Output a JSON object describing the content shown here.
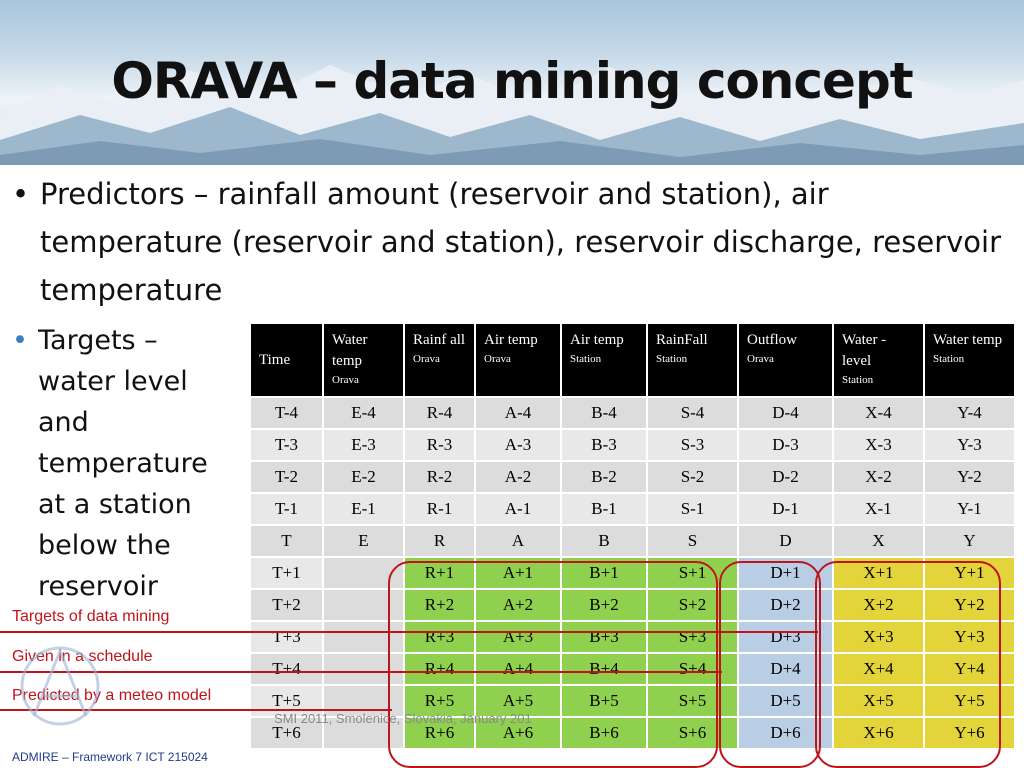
{
  "slide": {
    "title": "ORAVA – data mining concept",
    "bullet1": "Predictors – rainfall amount (reservoir and station), air temperature (reservoir and station), reservoir discharge, reservoir temperature",
    "bullet2": "Targets – water level and temperature at a station below the reservoir",
    "label_targets": "Targets of data mining",
    "label_schedule": "Given in a schedule",
    "label_meteo": "Predicted by a meteo model",
    "footer_left": "ADMIRE – Framework 7 ICT 215024",
    "footer_mid": "SMI 2011, Smolenice, Slovakia, January 201",
    "accent_red": "#c0141b",
    "green": "#8fd14f",
    "blue": "#b9cde4",
    "yellow": "#e2d43a"
  },
  "table": {
    "headers": [
      {
        "top": "Time",
        "sub": ""
      },
      {
        "top": "Water temp",
        "sub": "Orava"
      },
      {
        "top": "Rainf all",
        "sub": "Orava"
      },
      {
        "top": "Air temp",
        "sub": "Orava"
      },
      {
        "top": "Air temp",
        "sub": "Station"
      },
      {
        "top": "RainFall",
        "sub": "Station"
      },
      {
        "top": "Outflow",
        "sub": "Orava"
      },
      {
        "top": "Water - level",
        "sub": "Station"
      },
      {
        "top": "Water temp",
        "sub": "Station"
      }
    ],
    "rows": [
      [
        "T-4",
        "E-4",
        "R-4",
        "A-4",
        "B-4",
        "S-4",
        "D-4",
        "X-4",
        "Y-4"
      ],
      [
        "T-3",
        "E-3",
        "R-3",
        "A-3",
        "B-3",
        "S-3",
        "D-3",
        "X-3",
        "Y-3"
      ],
      [
        "T-2",
        "E-2",
        "R-2",
        "A-2",
        "B-2",
        "S-2",
        "D-2",
        "X-2",
        "Y-2"
      ],
      [
        "T-1",
        "E-1",
        "R-1",
        "A-1",
        "B-1",
        "S-1",
        "D-1",
        "X-1",
        "Y-1"
      ],
      [
        "T",
        "E",
        "R",
        "A",
        "B",
        "S",
        "D",
        "X",
        "Y"
      ],
      [
        "T+1",
        "",
        "R+1",
        "A+1",
        "B+1",
        "S+1",
        "D+1",
        "X+1",
        "Y+1"
      ],
      [
        "T+2",
        "",
        "R+2",
        "A+2",
        "B+2",
        "S+2",
        "D+2",
        "X+2",
        "Y+2"
      ],
      [
        "T+3",
        "",
        "R+3",
        "A+3",
        "B+3",
        "S+3",
        "D+3",
        "X+3",
        "Y+3"
      ],
      [
        "T+4",
        "",
        "R+4",
        "A+4",
        "B+4",
        "S+4",
        "D+4",
        "X+4",
        "Y+4"
      ],
      [
        "T+5",
        "",
        "R+5",
        "A+5",
        "B+5",
        "S+5",
        "D+5",
        "X+5",
        "Y+5"
      ],
      [
        "T+6",
        "",
        "R+6",
        "A+6",
        "B+6",
        "S+6",
        "D+6",
        "X+6",
        "Y+6"
      ]
    ]
  }
}
